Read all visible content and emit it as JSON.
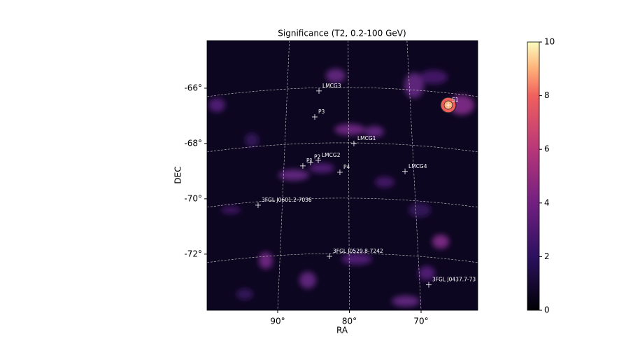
{
  "chart_data": {
    "type": "skymap",
    "title": "Significance (T2, 0.2-100 GeV)",
    "xlabel": "RA",
    "ylabel": "DEC",
    "xlim": [
      99.85,
      62.1
    ],
    "ylim": [
      -74.03,
      -64.28
    ],
    "xticks": [
      {
        "value": 90,
        "label": "90°"
      },
      {
        "value": 80,
        "label": "80°"
      },
      {
        "value": 70,
        "label": "70°"
      }
    ],
    "yticks": [
      {
        "value": -66,
        "label": "-66°"
      },
      {
        "value": -68,
        "label": "-68°"
      },
      {
        "value": -70,
        "label": "-70°"
      },
      {
        "value": -72,
        "label": "-72°"
      }
    ],
    "grid": true,
    "colorbar": {
      "lim": [
        0,
        10
      ],
      "ticks": [
        0,
        2,
        4,
        6,
        8,
        10
      ]
    },
    "sources": [
      {
        "name": "LMCG3",
        "ra": 84.24,
        "dec": -66.1
      },
      {
        "name": "P3",
        "ra": 84.83,
        "dec": -67.04
      },
      {
        "name": "LMCG1",
        "ra": 79.37,
        "dec": -68.0
      },
      {
        "name": "P2",
        "ra": 85.41,
        "dec": -68.68
      },
      {
        "name": "P1",
        "ra": 86.49,
        "dec": -68.81
      },
      {
        "name": "LMCG2",
        "ra": 84.34,
        "dec": -68.61
      },
      {
        "name": "P4",
        "ra": 81.32,
        "dec": -69.04
      },
      {
        "name": "LMCG4",
        "ra": 72.24,
        "dec": -69.01
      },
      {
        "name": "3FGL J0601.2-7036",
        "ra": 92.73,
        "dec": -70.23
      },
      {
        "name": "3FGL J0529.8-7242",
        "ra": 82.78,
        "dec": -72.08
      },
      {
        "name": "3FGL J0437.7-73",
        "ra": 68.93,
        "dec": -73.11
      },
      {
        "name": "S1",
        "ra": 66.2,
        "dec": -66.61
      }
    ]
  }
}
